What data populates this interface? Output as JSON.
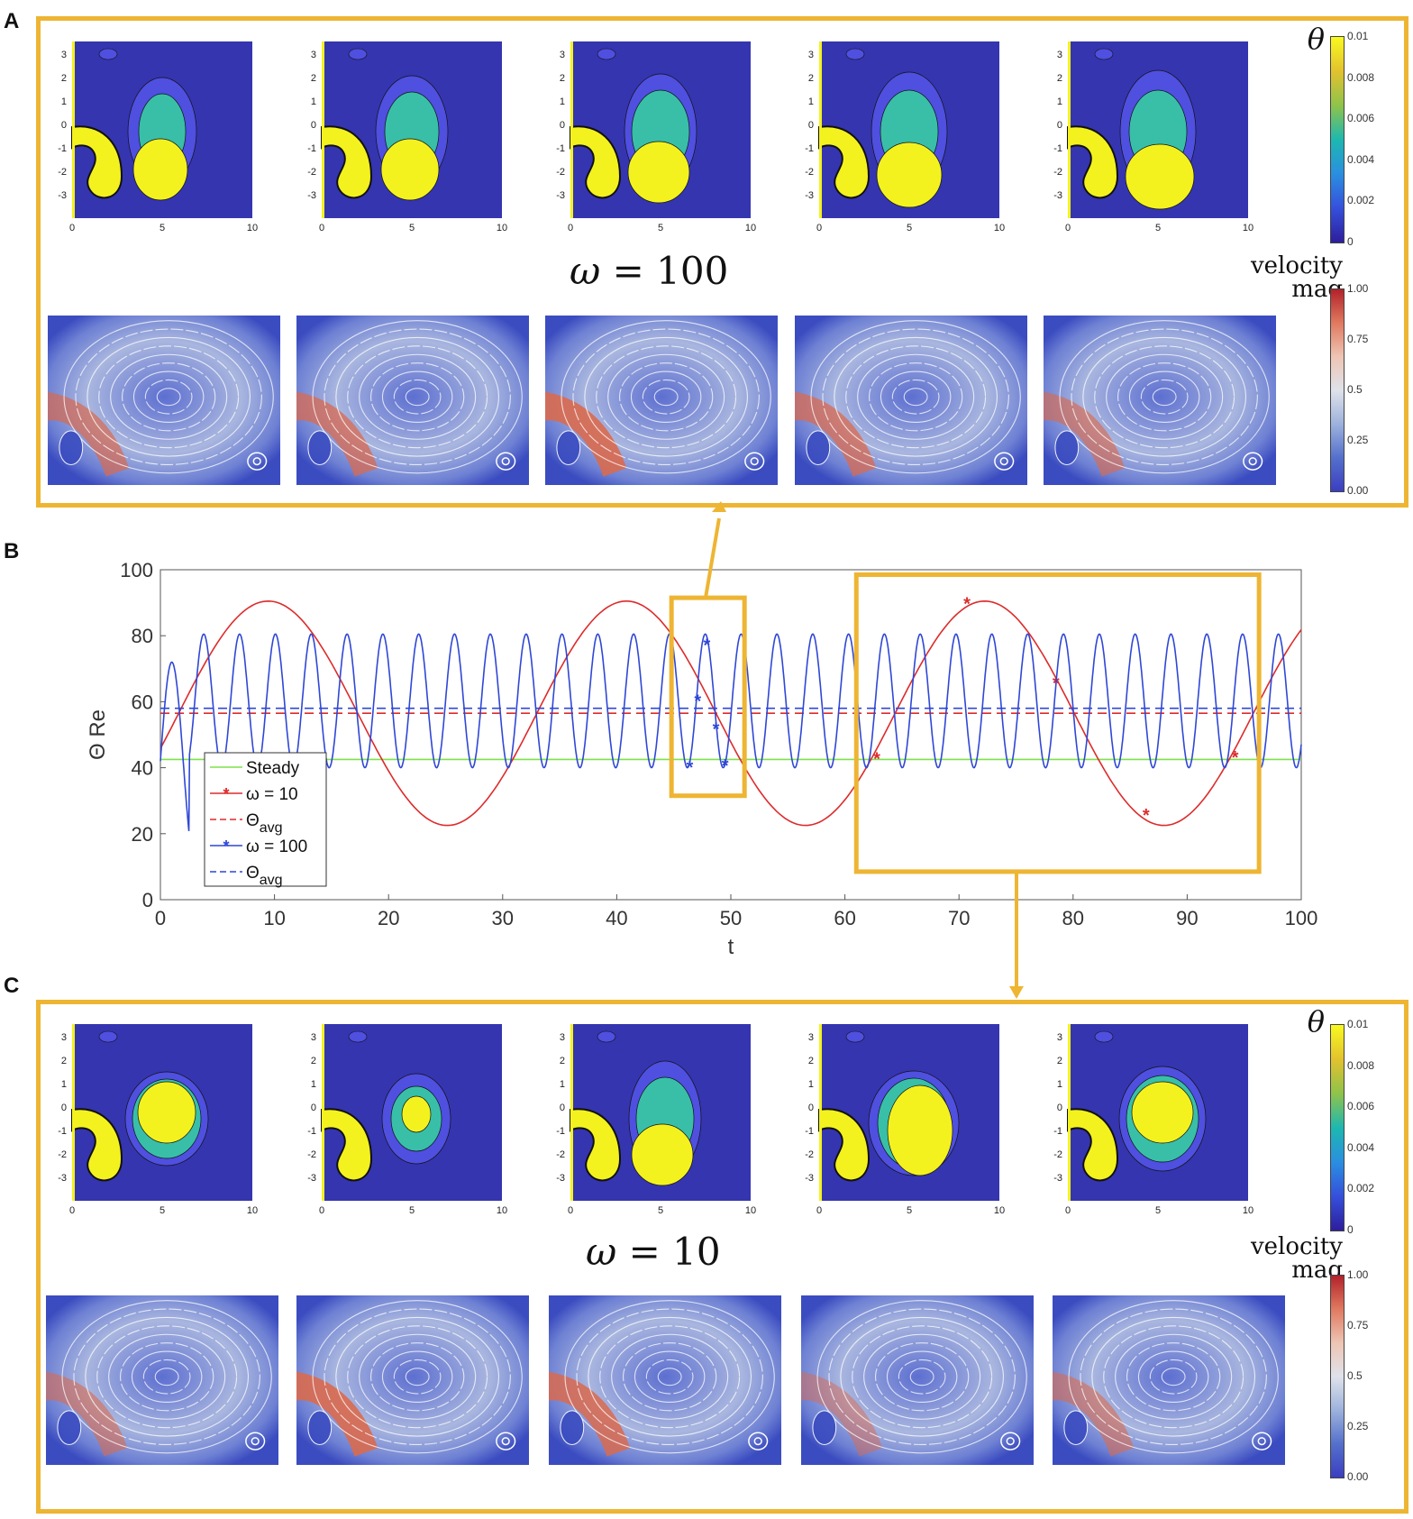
{
  "panels": {
    "a": "A",
    "b": "B",
    "c": "C"
  },
  "colorbars": {
    "theta_symbol": "θ",
    "theta_ticks": [
      "0.01",
      "0.008",
      "0.006",
      "0.004",
      "0.002",
      "0"
    ],
    "velocity_label_line1": "velocity",
    "velocity_label_line2": "mag",
    "velocity_ticks": [
      "1.00",
      "0.75",
      "0.5",
      "0.25",
      "0.00"
    ]
  },
  "snapshot_axes": {
    "y_ticks": [
      "3",
      "2",
      "1",
      "0",
      "-1",
      "-2",
      "-3"
    ],
    "x_ticks": [
      "0",
      "5",
      "10"
    ]
  },
  "omega_labels": {
    "a_symbol": "ω",
    "a_text": "= 100",
    "c_symbol": "ω",
    "c_text": "= 10"
  },
  "chart_data": {
    "type": "line",
    "title": "",
    "xlabel": "t",
    "ylabel": "Θ Re",
    "xlim": [
      0,
      100
    ],
    "ylim": [
      0,
      100
    ],
    "x_ticks": [
      "0",
      "10",
      "20",
      "30",
      "40",
      "50",
      "60",
      "70",
      "80",
      "90",
      "100"
    ],
    "y_ticks": [
      "0",
      "20",
      "40",
      "60",
      "80",
      "100"
    ],
    "grid": false,
    "legend_position": "bottom-left",
    "series": [
      {
        "name": "Steady",
        "color": "#7ee24a",
        "style": "solid",
        "kind": "constant",
        "value": 42.5
      },
      {
        "name": "ω = 10",
        "color": "#dd2b2b",
        "style": "solid",
        "kind": "sine",
        "mean": 56.5,
        "amplitude": 34,
        "period": 31.4,
        "phase_zero": 1.6,
        "markers": [
          [
            62.8,
            43
          ],
          [
            70.7,
            90
          ],
          [
            78.5,
            66
          ],
          [
            86.4,
            26
          ],
          [
            94.2,
            43.5
          ]
        ]
      },
      {
        "name": "Θavg",
        "color": "#dd2b2b",
        "style": "dashed",
        "kind": "constant",
        "value": 56.5
      },
      {
        "name": "ω = 100",
        "color": "#2f47d6",
        "style": "solid",
        "kind": "peaks",
        "period": 3.14,
        "first_peak": 3.8,
        "low": 40,
        "high": 80.5,
        "markers": [
          [
            46.4,
            40.5
          ],
          [
            47.1,
            60.5
          ],
          [
            47.9,
            77.5
          ],
          [
            48.7,
            52
          ],
          [
            49.5,
            41
          ]
        ]
      },
      {
        "name": "Θavg",
        "color": "#2f47d6",
        "style": "dashed",
        "kind": "constant",
        "value": 58
      }
    ],
    "legend_entries": [
      "Steady",
      "ω = 10",
      "Θ",
      "avg",
      "ω = 100",
      "Θ",
      "avg"
    ]
  }
}
